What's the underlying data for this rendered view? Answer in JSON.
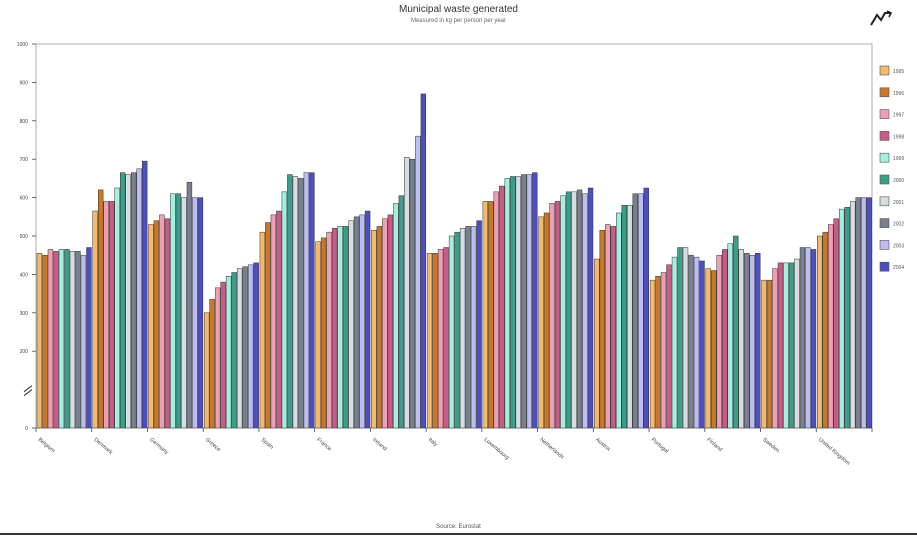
{
  "chart_data": {
    "type": "bar",
    "title": "Municipal waste generated",
    "subtitle": "Measured in kg per person per year",
    "source": "Source: Eurostat",
    "ylim": [
      0,
      1000
    ],
    "yticks": [
      0,
      200,
      300,
      400,
      500,
      600,
      700,
      800,
      900,
      1000
    ],
    "axis_break": true,
    "legend_position": "right",
    "grid": false,
    "categories": [
      "Belgium",
      "Denmark",
      "Germany",
      "Greece",
      "Spain",
      "France",
      "Ireland",
      "Italy",
      "Luxembourg",
      "Netherlands",
      "Austria",
      "Portugal",
      "Finland",
      "Sweden",
      "United Kingdom"
    ],
    "series": [
      {
        "name": "1995",
        "color": "#f5b96a",
        "values": [
          455,
          565,
          530,
          300,
          510,
          485,
          515,
          455,
          590,
          550,
          440,
          385,
          415,
          385,
          500
        ]
      },
      {
        "name": "1996",
        "color": "#c8782a",
        "values": [
          450,
          620,
          540,
          335,
          535,
          495,
          525,
          455,
          590,
          560,
          515,
          395,
          410,
          385,
          510
        ]
      },
      {
        "name": "1997",
        "color": "#ef9fb3",
        "values": [
          465,
          590,
          555,
          365,
          555,
          510,
          545,
          465,
          615,
          585,
          530,
          405,
          450,
          415,
          530
        ]
      },
      {
        "name": "1998",
        "color": "#c85b88",
        "values": [
          460,
          590,
          545,
          380,
          565,
          520,
          555,
          470,
          630,
          590,
          525,
          425,
          465,
          430,
          545
        ]
      },
      {
        "name": "1999",
        "color": "#a2f0dd",
        "values": [
          465,
          625,
          610,
          395,
          615,
          525,
          585,
          500,
          650,
          605,
          560,
          445,
          480,
          430,
          570
        ]
      },
      {
        "name": "2000",
        "color": "#3a9e8a",
        "values": [
          465,
          665,
          610,
          405,
          660,
          525,
          605,
          510,
          655,
          615,
          580,
          470,
          500,
          430,
          575
        ]
      },
      {
        "name": "2001",
        "color": "#d8dde2",
        "values": [
          460,
          660,
          600,
          415,
          655,
          540,
          705,
          520,
          655,
          615,
          580,
          470,
          465,
          440,
          590
        ]
      },
      {
        "name": "2002",
        "color": "#76808f",
        "values": [
          460,
          665,
          640,
          420,
          650,
          550,
          700,
          525,
          660,
          620,
          610,
          450,
          455,
          470,
          600
        ]
      },
      {
        "name": "2003",
        "color": "#bdbdf0",
        "values": [
          450,
          675,
          600,
          425,
          665,
          555,
          760,
          525,
          660,
          610,
          610,
          445,
          450,
          470,
          600
        ]
      },
      {
        "name": "2004",
        "color": "#4c4fc2",
        "values": [
          470,
          695,
          600,
          430,
          665,
          565,
          870,
          540,
          665,
          625,
          625,
          435,
          455,
          465,
          600
        ]
      }
    ]
  },
  "toolbar": {
    "export_icon": "chart-export-icon"
  }
}
